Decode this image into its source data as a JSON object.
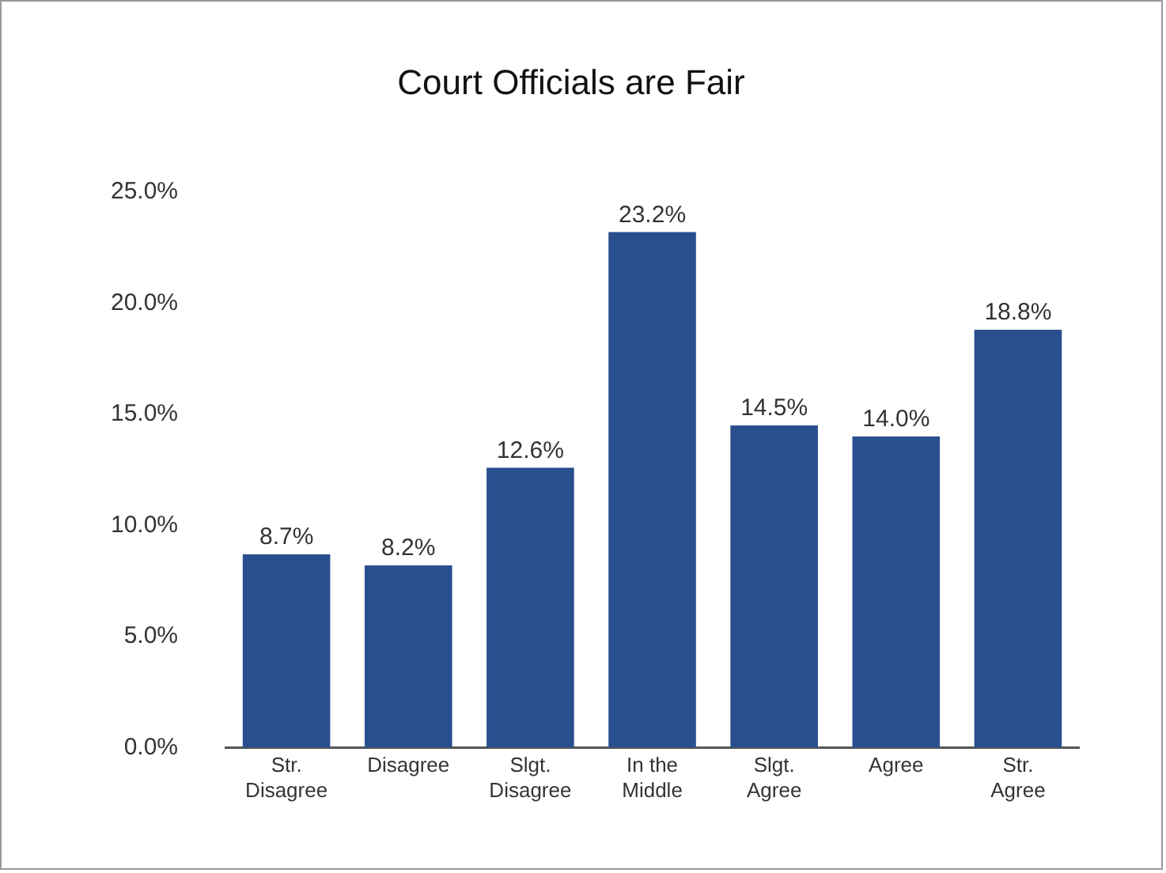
{
  "chart_data": {
    "type": "bar",
    "title": "Court Officials are Fair",
    "categories": [
      "Str.\nDisagree",
      "Disagree",
      "Slgt.\nDisagree",
      "In the\nMiddle",
      "Slgt.\nAgree",
      "Agree",
      "Str.\nAgree"
    ],
    "values": [
      8.7,
      8.2,
      12.6,
      23.2,
      14.5,
      14.0,
      18.8
    ],
    "value_labels": [
      "8.7%",
      "8.2%",
      "12.6%",
      "23.2%",
      "14.5%",
      "14.0%",
      "18.8%"
    ],
    "color": "#2a4f8f",
    "ylim": [
      0,
      25
    ],
    "yticks": [
      {
        "value": 0,
        "label": "0.0%"
      },
      {
        "value": 5,
        "label": "5.0%"
      },
      {
        "value": 10,
        "label": "10.0%"
      },
      {
        "value": 15,
        "label": "15.0%"
      },
      {
        "value": 20,
        "label": "20.0%"
      },
      {
        "value": 25,
        "label": "25.0%"
      }
    ],
    "grid": false,
    "legend": false
  }
}
